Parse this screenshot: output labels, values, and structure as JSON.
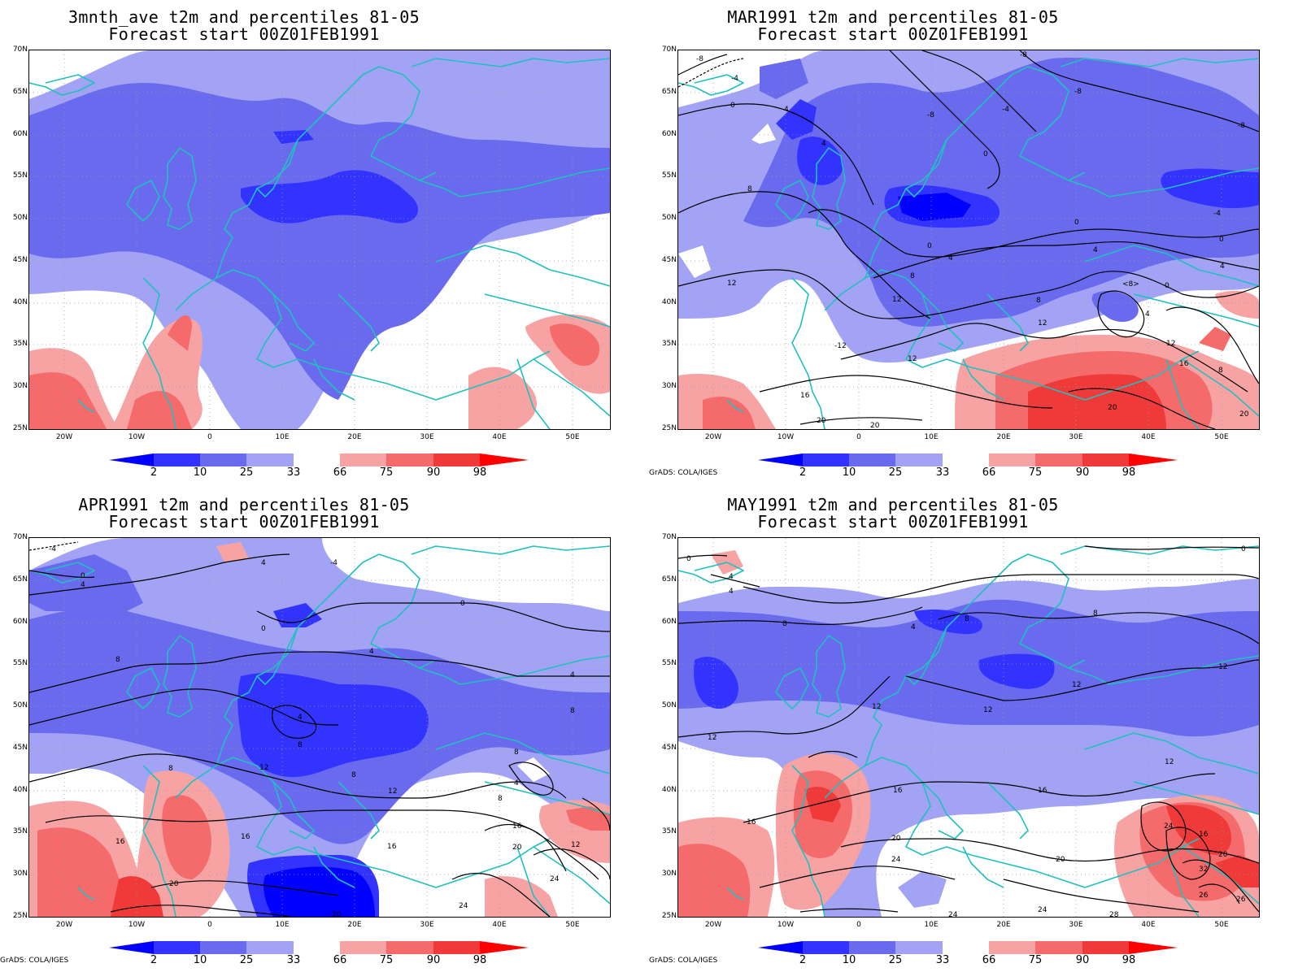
{
  "panels": [
    {
      "title": "3mnth_ave t2m and percentiles 81-05",
      "subtitle": "Forecast start 00Z01FEB1991",
      "credit": ""
    },
    {
      "title": "MAR1991 t2m and percentiles 81-05",
      "subtitle": "Forecast start 00Z01FEB1991",
      "credit": "GrADS: COLA/IGES"
    },
    {
      "title": "APR1991 t2m and percentiles 81-05",
      "subtitle": "Forecast start 00Z01FEB1991",
      "credit": "GrADS: COLA/IGES"
    },
    {
      "title": "MAY1991 t2m and percentiles 81-05",
      "subtitle": "Forecast start 00Z01FEB1991",
      "credit": "GrADS: COLA/IGES"
    }
  ],
  "latitude_labels": [
    "70N",
    "65N",
    "60N",
    "55N",
    "50N",
    "45N",
    "40N",
    "35N",
    "30N",
    "25N"
  ],
  "longitude_labels": [
    "20W",
    "10W",
    "0",
    "10E",
    "20E",
    "30E",
    "40E",
    "50E"
  ],
  "colorbar": {
    "labels": [
      "2",
      "10",
      "25",
      "33",
      "66",
      "75",
      "90",
      "98"
    ],
    "colors": [
      "#0000ff",
      "#3333ff",
      "#6a6aef",
      "#a3a3f5",
      "#ffffff",
      "#f7a3a3",
      "#f56a6a",
      "#f03a3a",
      "#ff0000"
    ]
  },
  "contour_labels": {
    "p1": [
      "-8",
      "-8",
      "-4",
      "-8",
      "-8",
      "-4",
      "-8",
      "0",
      "4",
      "4",
      "0",
      "-4",
      "8",
      "0",
      "0",
      "0",
      "4",
      "4",
      "4",
      "12",
      "8",
      "8",
      "12",
      "<8>",
      "0",
      "4",
      "12",
      "-12",
      "12",
      "12",
      "16",
      "16",
      "8",
      "20",
      "20",
      "20",
      "20"
    ],
    "p2": [
      "-4",
      "0",
      "4",
      "4",
      "-4",
      "0",
      "0",
      "4",
      "8",
      "4",
      "4",
      "8",
      "8",
      "8",
      "8",
      "12",
      "12",
      "8",
      "4",
      "8",
      "16",
      "16",
      "16",
      "12",
      "16",
      "20",
      "20",
      "24",
      "24",
      "20",
      "24",
      "24"
    ],
    "p3": [
      "0",
      "0",
      "4",
      "4",
      "8",
      "4",
      "8",
      "8",
      "12",
      "12",
      "12",
      "12",
      "12",
      "16",
      "16",
      "16",
      "12",
      "20",
      "24",
      "24",
      "16",
      "20",
      "20",
      "32",
      "26",
      "26",
      "28",
      "24",
      "24"
    ]
  },
  "colors": {
    "coastline": "#20c0c0",
    "contour": "#000000"
  }
}
